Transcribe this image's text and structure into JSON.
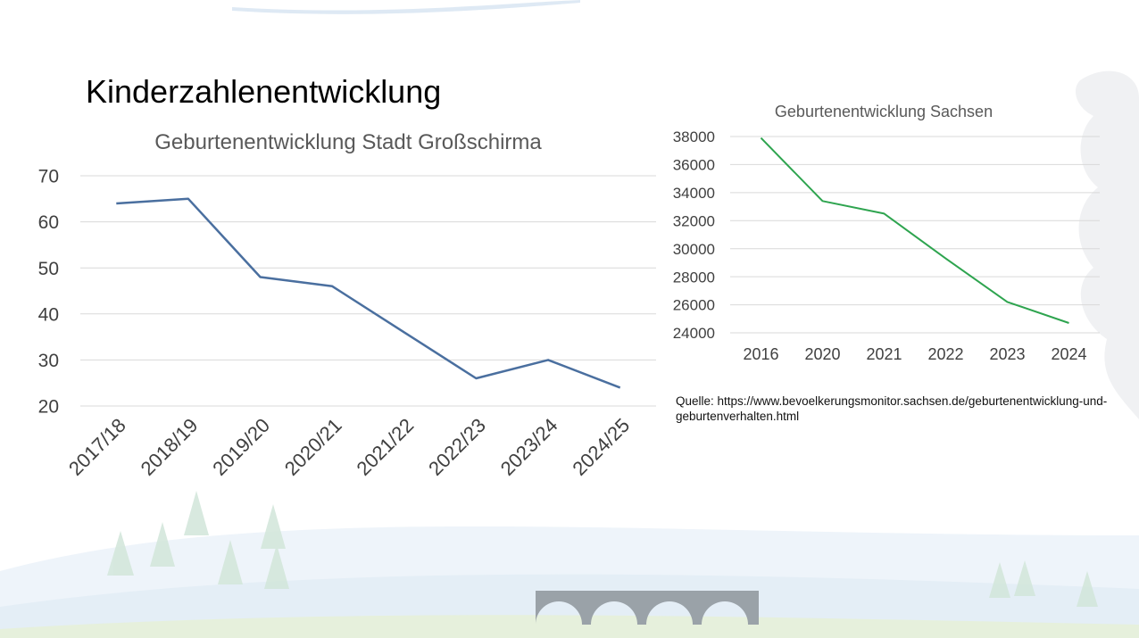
{
  "slide": {
    "title": "Kinderzahlenentwicklung",
    "source_note": "Quelle: https://www.bevoelkerungsmonitor.sachsen.de/geburtenentwicklung-und-geburtenverhalten.html"
  },
  "chart_data": [
    {
      "type": "line",
      "title": "Geburtenentwicklung Stadt Großschirma",
      "xlabel": "",
      "ylabel": "",
      "categories": [
        "2017/18",
        "2018/19",
        "2019/20",
        "2020/21",
        "2021/22",
        "2022/23",
        "2023/24",
        "2024/25"
      ],
      "series": [
        {
          "values": [
            64,
            65,
            48,
            46,
            36,
            26,
            30,
            24
          ],
          "color": "#4a6f9f"
        }
      ],
      "ylim": [
        20,
        70
      ],
      "yticks": [
        "20",
        "30",
        "40",
        "50",
        "60",
        "70"
      ],
      "grid": true,
      "legend": "none"
    },
    {
      "type": "line",
      "title": "Geburtenentwicklung Sachsen",
      "xlabel": "",
      "ylabel": "",
      "categories": [
        "2016",
        "2020",
        "2021",
        "2022",
        "2023",
        "2024"
      ],
      "series": [
        {
          "values": [
            37900,
            33400,
            32500,
            29300,
            26200,
            24700
          ],
          "color": "#2ea44f"
        }
      ],
      "ylim": [
        24000,
        38000
      ],
      "yticks": [
        "24000",
        "26000",
        "28000",
        "30000",
        "32000",
        "34000",
        "36000",
        "38000"
      ],
      "grid": true,
      "legend": "none"
    }
  ]
}
